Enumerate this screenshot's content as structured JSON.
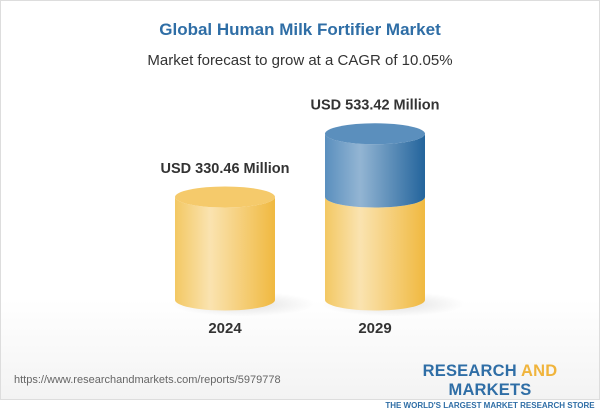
{
  "title": "Global Human Milk Fortifier Market",
  "subtitle": "Market forecast to grow at a CAGR of 10.05%",
  "chart_data": {
    "type": "bar",
    "style": "3d-cylinder",
    "categories": [
      "2024",
      "2029"
    ],
    "values": [
      330.46,
      533.42
    ],
    "data_labels": [
      "USD 330.46 Million",
      "USD 533.42 Million"
    ],
    "unit": "USD Million",
    "grid": false,
    "colors": {
      "base": "#f3c45a",
      "growth": "#3f7cb0"
    }
  },
  "footer": {
    "url": "https://www.researchandmarkets.com/reports/5979778",
    "logo": {
      "part1": "RESEARCH ",
      "part2": "AND",
      "part3": " MARKETS",
      "tagline": "THE WORLD'S LARGEST MARKET RESEARCH STORE"
    }
  }
}
